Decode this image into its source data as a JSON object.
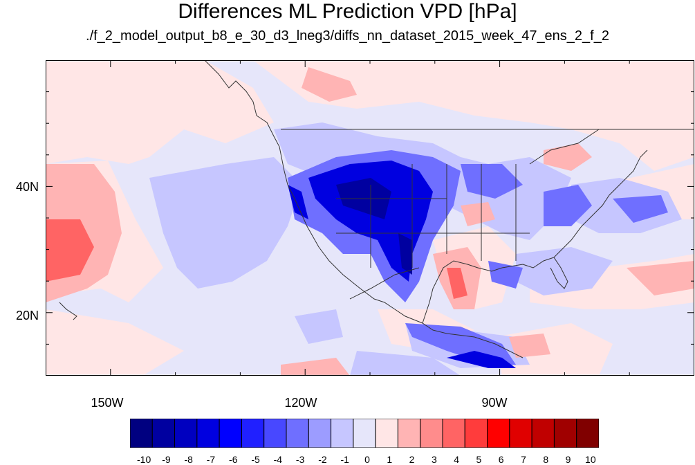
{
  "title": "Differences ML Prediction VPD [hPa]",
  "subtitle": "./f_2_model_output_b8_e_30_d3_lneg3/diffs_nn_dataset_2015_week_47_ens_2_f_2",
  "map": {
    "projection": "lat-lon",
    "lon_range": [
      -160,
      -60
    ],
    "lat_range": [
      10,
      60
    ],
    "background_color": "#e6e6fa",
    "coastline_color": "#333333"
  },
  "lat_labels": [
    {
      "value": 40,
      "text": "40N"
    },
    {
      "value": 20,
      "text": "20N"
    }
  ],
  "lon_labels": [
    {
      "value": -150,
      "text": "150W"
    },
    {
      "value": -120,
      "text": "120W"
    },
    {
      "value": -90,
      "text": "90W"
    }
  ],
  "colorbar": {
    "labels": [
      "-10",
      "-9",
      "-8",
      "-7",
      "-6",
      "-5",
      "-4",
      "-3",
      "-2",
      "-1",
      "0",
      "1",
      "2",
      "3",
      "4",
      "5",
      "6",
      "7",
      "8",
      "9",
      "10"
    ],
    "colors": [
      "#000080",
      "#0000a0",
      "#0000c0",
      "#0000e0",
      "#0000ff",
      "#2020ff",
      "#4848ff",
      "#6f6fff",
      "#9c9cff",
      "#c6c6ff",
      "#e6e6fa",
      "#ffe6e6",
      "#ffb4b4",
      "#ff8c8c",
      "#ff6464",
      "#ff3c3c",
      "#ff0000",
      "#e00000",
      "#c00000",
      "#a00000",
      "#800000"
    ]
  }
}
